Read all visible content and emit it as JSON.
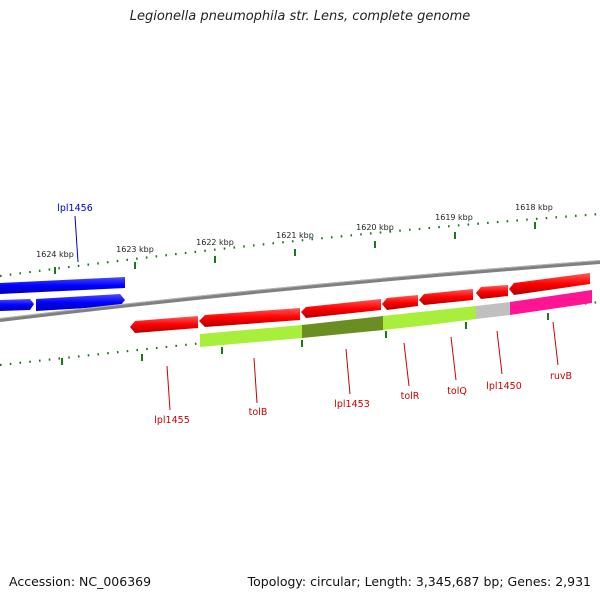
{
  "title": "Legionella pneumophila str. Lens, complete genome",
  "accession": "Accession: NC_006369",
  "summary": "Topology: circular; Length: 3,345,687 bp; Genes: 2,931",
  "colors": {
    "forward_gene": "#0000ff",
    "reverse_gene": "#ff0000",
    "tick": "#1a7a1a",
    "backbone": "#808080",
    "cog_yellowgreen": "#a8ee3a",
    "cog_olive": "#6b8e23",
    "cog_gray": "#c0c0c0",
    "cog_magenta": "#ff1493"
  },
  "scale_labels": [
    "1624 kbp",
    "1623 kbp",
    "1622 kbp",
    "1621 kbp",
    "1620 kbp",
    "1619 kbp",
    "1618 kbp"
  ],
  "gene_labels": [
    {
      "name": "lpl1456",
      "strand": "forward"
    },
    {
      "name": "lpl1455",
      "strand": "reverse"
    },
    {
      "name": "tolB",
      "strand": "reverse"
    },
    {
      "name": "lpl1453",
      "strand": "reverse"
    },
    {
      "name": "tolR",
      "strand": "reverse"
    },
    {
      "name": "tolQ",
      "strand": "reverse"
    },
    {
      "name": "lpl1450",
      "strand": "reverse"
    },
    {
      "name": "ruvB",
      "strand": "reverse"
    }
  ]
}
